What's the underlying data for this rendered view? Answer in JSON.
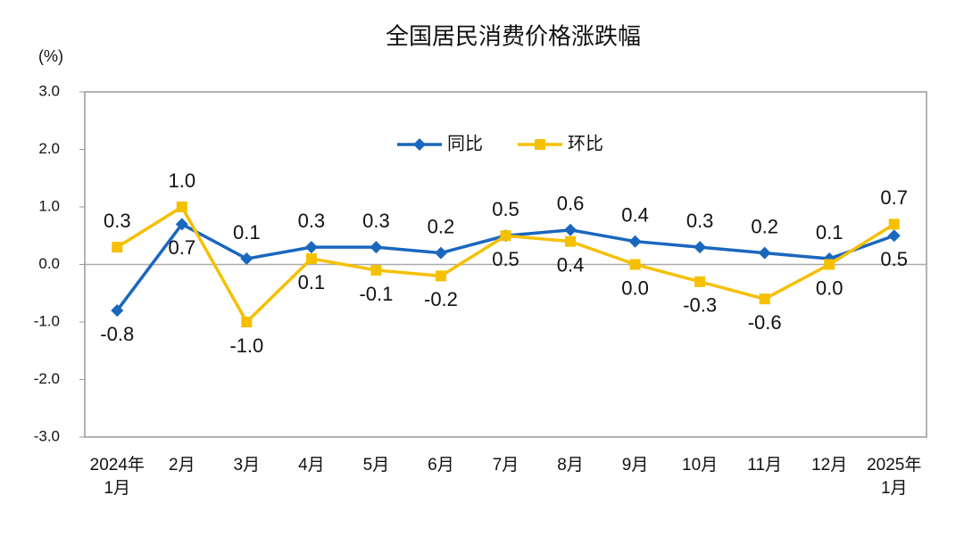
{
  "chart_data": {
    "type": "line",
    "title": "全国居民消费价格涨跌幅",
    "y_label": "(%)",
    "categories": [
      "2024年\n1月",
      "2月",
      "3月",
      "4月",
      "5月",
      "6月",
      "7月",
      "8月",
      "9月",
      "10月",
      "11月",
      "12月",
      "2025年\n1月"
    ],
    "series": [
      {
        "name": "同比",
        "color": "#1a67be",
        "marker": "diamond",
        "values": [
          -0.8,
          0.7,
          0.1,
          0.3,
          0.3,
          0.2,
          0.5,
          0.6,
          0.4,
          0.3,
          0.2,
          0.1,
          0.5
        ],
        "value_labels": [
          "-0.8",
          "0.7",
          "0.1",
          "0.3",
          "0.3",
          "0.2",
          "0.5",
          "0.6",
          "0.4",
          "0.3",
          "0.2",
          "0.1",
          "0.5"
        ]
      },
      {
        "name": "环比",
        "color": "#f5c000",
        "marker": "square",
        "values": [
          0.3,
          1.0,
          -1.0,
          0.1,
          -0.1,
          -0.2,
          0.5,
          0.4,
          0.0,
          -0.3,
          -0.6,
          0.0,
          0.7
        ],
        "value_labels": [
          "0.3",
          "1.0",
          "-1.0",
          "0.1",
          "-0.1",
          "-0.2",
          "0.5",
          "0.4",
          "0.0",
          "-0.3",
          "-0.6",
          "0.0",
          "0.7"
        ]
      }
    ],
    "ylim": [
      -3,
      3
    ],
    "yticks": [
      {
        "value": -3,
        "label": "-3.0"
      },
      {
        "value": -2,
        "label": "-2.0"
      },
      {
        "value": -1,
        "label": "-1.0"
      },
      {
        "value": 0,
        "label": "0.0"
      },
      {
        "value": 1,
        "label": "1.0"
      },
      {
        "value": 2,
        "label": "2.0"
      },
      {
        "value": 3,
        "label": "3.0"
      }
    ],
    "legend": "top",
    "grid": false
  }
}
